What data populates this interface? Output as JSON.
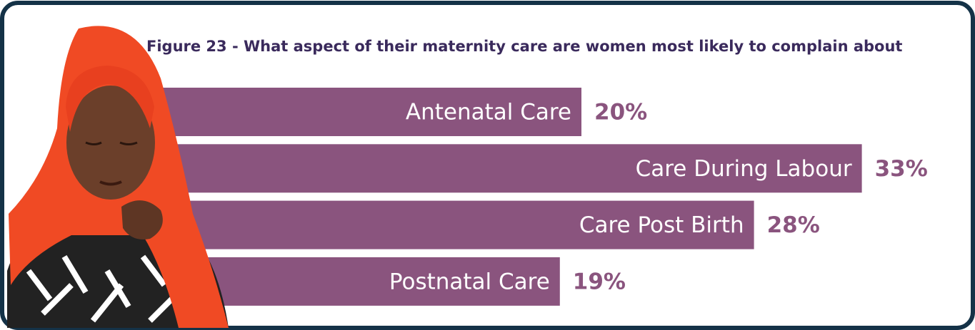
{
  "chart_data": {
    "type": "bar",
    "orientation": "horizontal",
    "title": "Figure 23 - What aspect of their maternity care are women most likely to complain about",
    "categories": [
      "Antenatal Care",
      "Care During Labour",
      "Care Post Birth",
      "Postnatal Care"
    ],
    "values": [
      20,
      33,
      28,
      19
    ],
    "value_labels": [
      "20%",
      "33%",
      "28%",
      "19%"
    ],
    "color": "#8a547e"
  }
}
